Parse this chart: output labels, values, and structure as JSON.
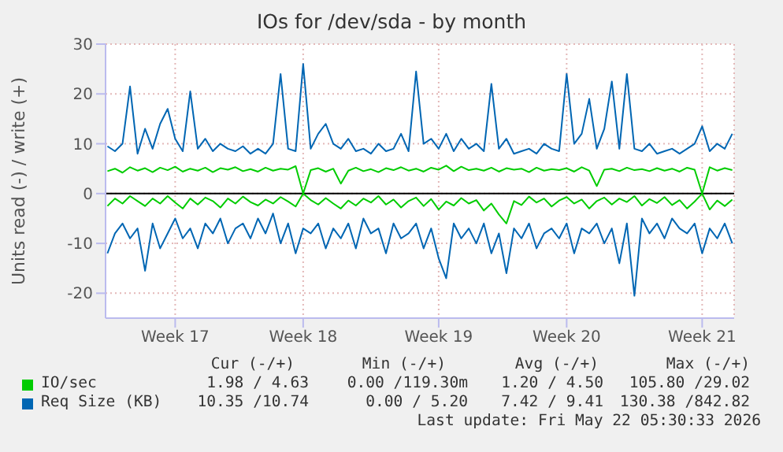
{
  "chart_data": {
    "type": "line",
    "title": "IOs for /dev/sda - by month",
    "ylabel": "Units read (-) / write (+)",
    "categories": [
      null,
      null,
      null,
      null,
      null,
      null,
      null,
      null,
      null,
      "Week 17",
      null,
      null,
      null,
      null,
      null,
      null,
      null,
      null,
      null,
      null,
      null,
      null,
      null,
      null,
      null,
      null,
      "Week 18",
      null,
      null,
      null,
      null,
      null,
      null,
      null,
      null,
      null,
      null,
      null,
      null,
      null,
      null,
      null,
      null,
      null,
      "Week 19",
      null,
      null,
      null,
      null,
      null,
      null,
      null,
      null,
      null,
      null,
      null,
      null,
      null,
      null,
      null,
      null,
      "Week 20",
      null,
      null,
      null,
      null,
      null,
      null,
      null,
      null,
      null,
      null,
      null,
      null,
      null,
      null,
      null,
      null,
      null,
      "Week 21",
      null,
      null,
      null,
      null
    ],
    "series": [
      {
        "name": "IO/sec",
        "color": "#00cc00",
        "values": [
          4.5,
          5,
          4.2,
          5.3,
          4.6,
          5.1,
          4.3,
          5.2,
          4.7,
          5.4,
          4.4,
          5,
          4.6,
          5.2,
          4.3,
          5.1,
          4.8,
          5.3,
          4.5,
          4.9,
          4.4,
          5.2,
          4.6,
          5,
          4.8,
          5.5,
          0,
          4.7,
          5.1,
          4.4,
          5,
          2,
          4.6,
          5.2,
          4.5,
          4.9,
          4.3,
          5.1,
          4.7,
          5.3,
          4.6,
          5,
          4.4,
          5.2,
          4.8,
          5.6,
          4.5,
          5.4,
          4.7,
          5,
          4.6,
          5.2,
          4.4,
          5.1,
          4.8,
          5,
          4.3,
          5.2,
          4.6,
          4.9,
          4.7,
          5.1,
          4.4,
          5.3,
          4.6,
          1.5,
          4.8,
          5,
          4.5,
          5.2,
          4.7,
          4.9,
          4.5,
          5.1,
          4.6,
          5,
          4.4,
          5.2,
          4.8,
          0,
          5.3,
          4.6,
          5.1,
          4.7
        ]
      },
      {
        "color": "#00cc00",
        "values": [
          -2.5,
          -1,
          -2,
          -0.5,
          -1.5,
          -2.5,
          -1,
          -2,
          -0.5,
          -1.8,
          -3,
          -1,
          -2.2,
          -0.8,
          -1.5,
          -2.8,
          -1,
          -2,
          -0.6,
          -1.7,
          -2.4,
          -1.2,
          -2,
          -0.7,
          -1.6,
          -2.6,
          0,
          -1.3,
          -2.2,
          -0.9,
          -2,
          -3,
          -1.4,
          -2.4,
          -1,
          -1.8,
          -0.5,
          -2.2,
          -1.2,
          -2.8,
          -1.5,
          -0.8,
          -2.5,
          -1.1,
          -3.2,
          -1.6,
          -2.4,
          -0.9,
          -2,
          -1.3,
          -3.4,
          -2,
          -4.2,
          -6,
          -1.5,
          -2.3,
          -0.6,
          -1.8,
          -1,
          -2.6,
          -1.4,
          -0.7,
          -2,
          -1.2,
          -3,
          -1.5,
          -0.8,
          -2.2,
          -1,
          -1.7,
          -0.5,
          -2.4,
          -1.1,
          -1.9,
          -0.7,
          -2.3,
          -1.3,
          -3,
          -1.6,
          0,
          -3.2,
          -1.4,
          -2.5,
          -1.2
        ]
      },
      {
        "name": "Req Size (KB)",
        "color": "#0066b3",
        "values": [
          9.5,
          8.5,
          10,
          21.5,
          8,
          13,
          9,
          14,
          17,
          11,
          8.5,
          20.5,
          9,
          11,
          8.5,
          10,
          9,
          8.5,
          9.5,
          8,
          9,
          8,
          10,
          24,
          9,
          8.5,
          26,
          9,
          12,
          14,
          10,
          9,
          11,
          8.5,
          9,
          8,
          10,
          8.5,
          9,
          12,
          8.5,
          24.5,
          10,
          11,
          9,
          12,
          8.5,
          11,
          9,
          10,
          8.5,
          22,
          9,
          11,
          8,
          8.5,
          9,
          8,
          10,
          9,
          8.5,
          24,
          10,
          12,
          19,
          9,
          13,
          22.5,
          9,
          24,
          9,
          8.5,
          10,
          8,
          8.5,
          9,
          8,
          9,
          10,
          13.5,
          8.5,
          10,
          9,
          12
        ]
      },
      {
        "color": "#0066b3",
        "values": [
          -12,
          -8,
          -6,
          -9,
          -7,
          -15.5,
          -6,
          -11,
          -8,
          -5,
          -9,
          -7,
          -11,
          -6,
          -8,
          -5,
          -10,
          -7,
          -6,
          -9,
          -5,
          -8,
          -4,
          -10,
          -6,
          -12,
          -7,
          -8,
          -6,
          -11,
          -7,
          -9,
          -6,
          -11,
          -5,
          -8,
          -7,
          -12,
          -6,
          -9,
          -8,
          -6,
          -11,
          -7,
          -13,
          -17,
          -6,
          -9,
          -7,
          -10,
          -6,
          -12,
          -8,
          -16,
          -7,
          -9,
          -6,
          -11,
          -8,
          -7,
          -9,
          -6,
          -12,
          -7,
          -8,
          -6,
          -10,
          -7,
          -14,
          -6,
          -20.5,
          -5,
          -8,
          -6,
          -9,
          -5,
          -7,
          -8,
          -6,
          -12,
          -7,
          -9,
          -6,
          -10
        ]
      }
    ],
    "ylim": [
      -25,
      30
    ],
    "yticks": [
      -20,
      -10,
      0,
      10,
      20,
      30
    ],
    "ref_lines": [
      {
        "axis": "y",
        "value": 0,
        "color": "#000000"
      }
    ],
    "grid": true,
    "legend": "bottom",
    "marker": "none",
    "line_style": "solid",
    "annotations": [
      "Cur (-/+)",
      "Min (-/+)",
      "Avg (-/+)",
      "Max (-/+)",
      "1.98 / 4.63",
      "0.00 /119.30m",
      "1.20 / 4.50",
      "105.80 /29.02",
      "10.35 /10.74",
      "0.00 / 5.20",
      "7.42 / 9.41",
      "130.38 /842.82",
      "Last update: Fri May 22 05:30:33 2026"
    ]
  }
}
